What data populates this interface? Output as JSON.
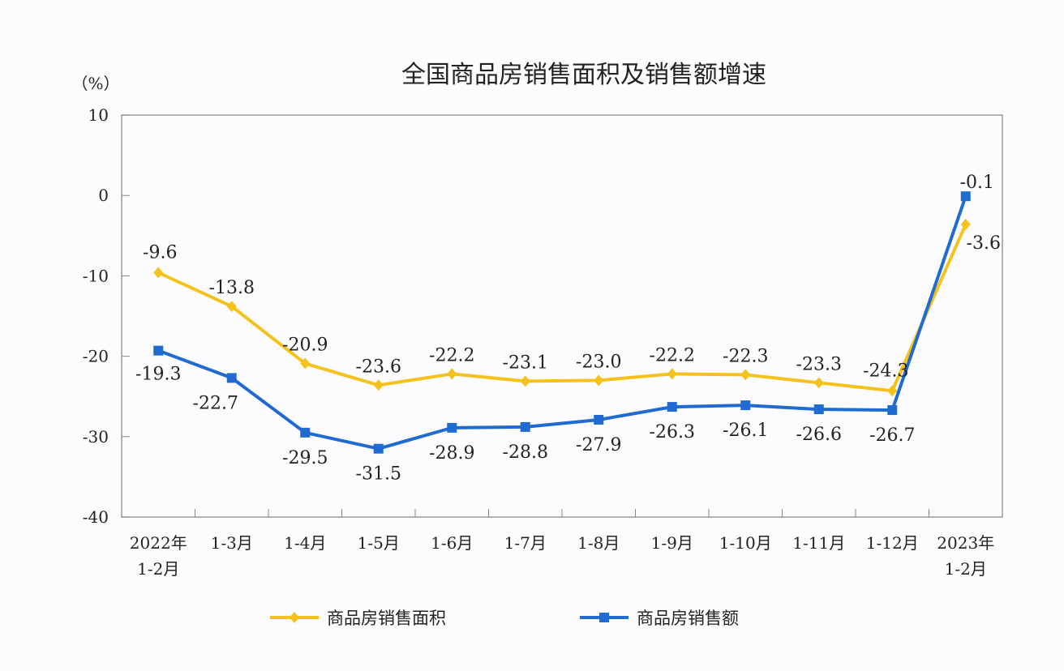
{
  "chart_data": {
    "type": "line",
    "title": "全国商品房销售面积及销售额增速",
    "ylabel": "（%）",
    "xlabel": "",
    "ylim": [
      -40,
      10
    ],
    "yticks": [
      10,
      0,
      -10,
      -20,
      -30,
      -40
    ],
    "grid": false,
    "legend_position": "bottom",
    "categories": [
      "2022年\n1-2月",
      "1-3月",
      "1-4月",
      "1-5月",
      "1-6月",
      "1-7月",
      "1-8月",
      "1-9月",
      "1-10月",
      "1-11月",
      "1-12月",
      "2023年\n1-2月"
    ],
    "series": [
      {
        "name": "商品房销售面积",
        "color": "#f5c21b",
        "marker": "diamond",
        "values": [
          -9.6,
          -13.8,
          -20.9,
          -23.6,
          -22.2,
          -23.1,
          -23.0,
          -22.2,
          -22.3,
          -23.3,
          -24.3,
          -3.6
        ]
      },
      {
        "name": "商品房销售额",
        "color": "#1f6bd0",
        "marker": "square",
        "values": [
          -19.3,
          -22.7,
          -29.5,
          -31.5,
          -28.9,
          -28.8,
          -27.9,
          -26.3,
          -26.1,
          -26.6,
          -26.7,
          -0.1
        ]
      }
    ]
  }
}
